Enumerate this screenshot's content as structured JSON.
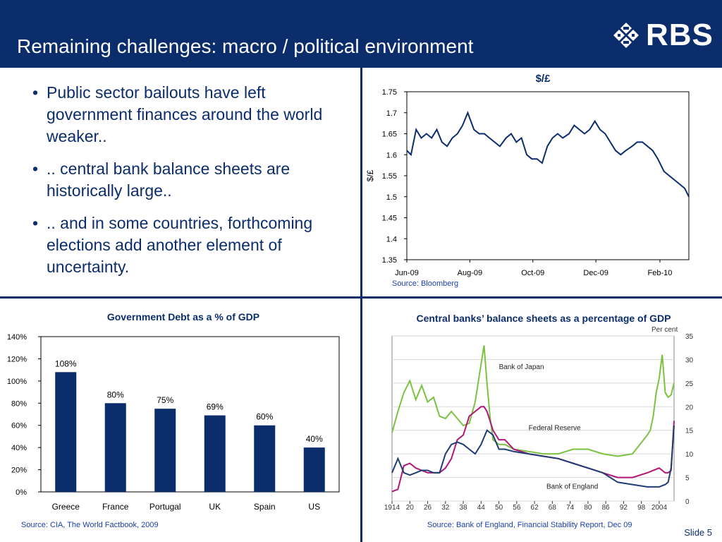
{
  "header": {
    "title": "Remaining challenges: macro / political environment",
    "logo_text": "RBS"
  },
  "bullets": [
    " Public sector bailouts have left government finances around the world weaker..",
    ".. central bank balance sheets are historically large..",
    ".. and in some countries, forthcoming elections add another element of uncertainty."
  ],
  "fx_chart": {
    "title": "$/£",
    "source": "Source: Bloomberg"
  },
  "debt_chart": {
    "title": "Government Debt as a % of GDP",
    "source": "Source: CIA, The World Factbook, 2009"
  },
  "cb_chart": {
    "title": "Central banks’ balance sheets as a percentage of GDP",
    "source": "Source: Bank of England, Financial Stability Report, Dec 09"
  },
  "footer": {
    "slide": "Slide 5"
  },
  "colors": {
    "brand_navy": "#0b2d6b",
    "bar_fill": "#0b2d6b",
    "boj_green": "#7cc242",
    "fed_magenta": "#b0177a",
    "boe_navy": "#1f3c73"
  },
  "chart_data": [
    {
      "type": "line",
      "title": "$/£",
      "ylabel": "$/£",
      "ylim": [
        1.35,
        1.75
      ],
      "yticks": [
        "1.35",
        "1.4",
        "1.45",
        "1.5",
        "1.55",
        "1.6",
        "1.65",
        "1.7",
        "1.75"
      ],
      "xtick_labels": [
        "Jun-09",
        "Aug-09",
        "Oct-09",
        "Dec-09",
        "Feb-10"
      ],
      "x_start": "2009-06-01",
      "x_end": "2010-03-01",
      "series": [
        {
          "x": [
            "2009-06-01",
            "2009-06-05",
            "2009-06-10",
            "2009-06-15",
            "2009-06-20",
            "2009-06-25",
            "2009-06-30",
            "2009-07-05",
            "2009-07-10",
            "2009-07-15",
            "2009-07-20",
            "2009-07-25",
            "2009-07-30",
            "2009-08-05",
            "2009-08-10",
            "2009-08-15",
            "2009-08-20",
            "2009-08-25",
            "2009-08-30",
            "2009-09-05",
            "2009-09-10",
            "2009-09-15",
            "2009-09-20",
            "2009-09-25",
            "2009-09-30",
            "2009-10-05",
            "2009-10-10",
            "2009-10-15",
            "2009-10-20",
            "2009-10-25",
            "2009-10-30",
            "2009-11-05",
            "2009-11-10",
            "2009-11-15",
            "2009-11-20",
            "2009-11-25",
            "2009-11-30",
            "2009-12-05",
            "2009-12-10",
            "2009-12-15",
            "2009-12-20",
            "2009-12-25",
            "2009-12-30",
            "2010-01-05",
            "2010-01-10",
            "2010-01-15",
            "2010-01-20",
            "2010-01-25",
            "2010-01-30",
            "2010-02-05",
            "2010-02-10",
            "2010-02-15",
            "2010-02-20",
            "2010-02-25",
            "2010-03-01"
          ],
          "values": [
            1.61,
            1.6,
            1.66,
            1.64,
            1.65,
            1.64,
            1.66,
            1.63,
            1.62,
            1.64,
            1.65,
            1.67,
            1.7,
            1.66,
            1.65,
            1.65,
            1.64,
            1.63,
            1.62,
            1.64,
            1.65,
            1.63,
            1.64,
            1.6,
            1.59,
            1.59,
            1.58,
            1.62,
            1.64,
            1.65,
            1.64,
            1.65,
            1.67,
            1.66,
            1.65,
            1.66,
            1.68,
            1.66,
            1.65,
            1.63,
            1.61,
            1.6,
            1.61,
            1.62,
            1.63,
            1.63,
            1.62,
            1.61,
            1.59,
            1.56,
            1.55,
            1.54,
            1.53,
            1.52,
            1.5
          ]
        }
      ]
    },
    {
      "type": "bar",
      "title": "Government Debt as a % of GDP",
      "categories": [
        "Greece",
        "France",
        "Portugal",
        "UK",
        "Spain",
        "US"
      ],
      "values": [
        108,
        80,
        75,
        69,
        60,
        40
      ],
      "value_labels": [
        "108%",
        "80%",
        "75%",
        "69%",
        "60%",
        "40%"
      ],
      "ylim": [
        0,
        140
      ],
      "yticks": [
        "0%",
        "20%",
        "40%",
        "60%",
        "80%",
        "100%",
        "120%",
        "140%"
      ]
    },
    {
      "type": "line",
      "title": "Central banks’ balance sheets as a percentage of GDP",
      "yunit": "Per cent",
      "ylim": [
        0,
        35
      ],
      "yticks": [
        "0",
        "5",
        "10",
        "15",
        "20",
        "25",
        "30",
        "35"
      ],
      "xlim": [
        1914,
        2009
      ],
      "xtick_labels": [
        "1914",
        "20",
        "26",
        "32",
        "38",
        "44",
        "50",
        "56",
        "62",
        "68",
        "74",
        "80",
        "86",
        "92",
        "98",
        "2004"
      ],
      "xtick_values": [
        1914,
        1920,
        1926,
        1932,
        1938,
        1944,
        1950,
        1956,
        1962,
        1968,
        1974,
        1980,
        1986,
        1992,
        1998,
        2004
      ],
      "series": [
        {
          "name": "Bank of Japan",
          "x": [
            1914,
            1916,
            1918,
            1920,
            1922,
            1924,
            1926,
            1928,
            1930,
            1932,
            1934,
            1936,
            1938,
            1940,
            1942,
            1944,
            1945,
            1946,
            1947,
            1948,
            1950,
            1952,
            1955,
            1960,
            1965,
            1970,
            1975,
            1980,
            1985,
            1990,
            1995,
            2000,
            2001,
            2002,
            2003,
            2004,
            2005,
            2006,
            2007,
            2008,
            2009
          ],
          "values": [
            14.5,
            19,
            23,
            25.5,
            21.5,
            24.5,
            21,
            22,
            18,
            17.5,
            19,
            17.5,
            16,
            16.5,
            21,
            29,
            33,
            25,
            18,
            13,
            12,
            12,
            11,
            10.5,
            10,
            10,
            11,
            11,
            10,
            9.5,
            10,
            14,
            15,
            18,
            23,
            26,
            31,
            23,
            22,
            22.5,
            25
          ]
        },
        {
          "name": "Federal Reserve",
          "x": [
            1914,
            1916,
            1918,
            1920,
            1922,
            1924,
            1926,
            1928,
            1930,
            1932,
            1934,
            1936,
            1938,
            1940,
            1942,
            1944,
            1945,
            1946,
            1948,
            1950,
            1952,
            1955,
            1960,
            1965,
            1970,
            1975,
            1980,
            1985,
            1990,
            1995,
            2000,
            2004,
            2006,
            2007,
            2008,
            2009
          ],
          "values": [
            2,
            2.5,
            7.5,
            8,
            7,
            6.5,
            6,
            6,
            6,
            7,
            9,
            13,
            14,
            18,
            19,
            20,
            20,
            19,
            15,
            13,
            13,
            11,
            10,
            9.5,
            9,
            8,
            7,
            6,
            5,
            5,
            6,
            7,
            6,
            6,
            6.5,
            17
          ]
        },
        {
          "name": "Bank of England",
          "x": [
            1914,
            1916,
            1918,
            1920,
            1922,
            1924,
            1926,
            1928,
            1930,
            1932,
            1934,
            1936,
            1938,
            1940,
            1942,
            1944,
            1946,
            1948,
            1950,
            1952,
            1955,
            1960,
            1965,
            1970,
            1975,
            1980,
            1985,
            1990,
            1995,
            2000,
            2004,
            2006,
            2007,
            2008,
            2009
          ],
          "values": [
            6,
            9,
            6,
            5.5,
            6,
            6.5,
            6.5,
            6,
            6,
            10,
            12,
            12.5,
            12,
            11,
            10,
            12,
            15,
            14,
            11,
            11,
            10.5,
            10,
            9.5,
            9,
            8,
            7,
            6,
            4,
            3.5,
            3,
            3,
            3.5,
            4,
            7,
            16
          ]
        }
      ]
    }
  ]
}
